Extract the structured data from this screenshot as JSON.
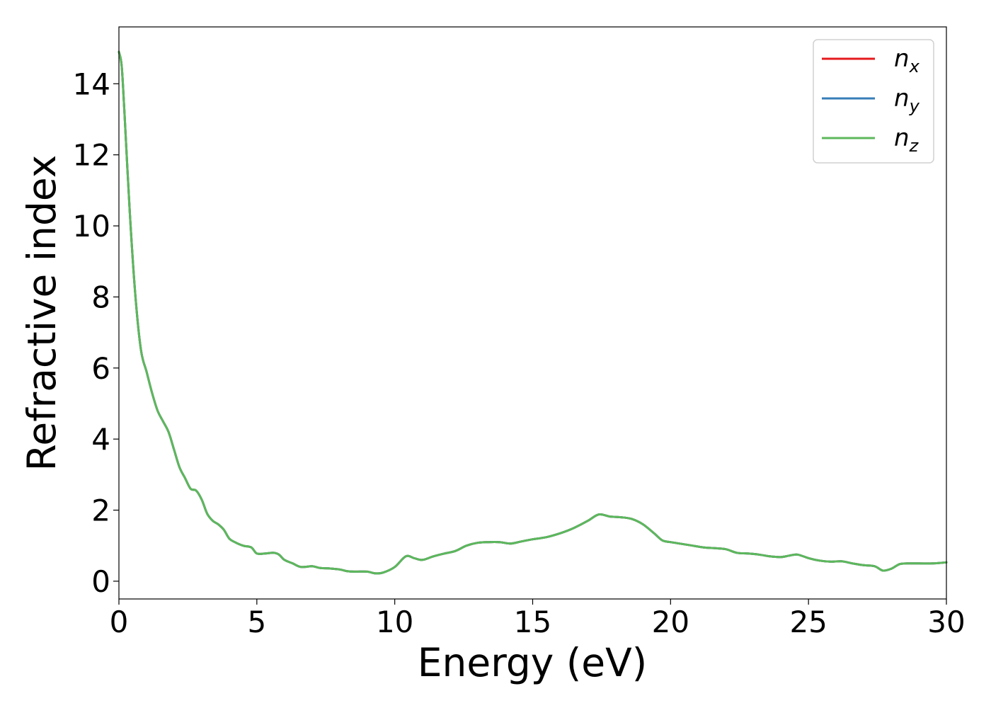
{
  "chart_data": {
    "type": "line",
    "xlabel": "Energy (eV)",
    "ylabel": "Refractive index",
    "xlim": [
      0,
      30
    ],
    "ylim": [
      -0.5,
      15.6
    ],
    "x_ticks": [
      0,
      5,
      10,
      15,
      20,
      25,
      30
    ],
    "y_ticks": [
      0,
      2,
      4,
      6,
      8,
      10,
      12,
      14
    ],
    "grid": false,
    "legend_position": "top-right",
    "series": [
      {
        "name": "n",
        "subscript": "x",
        "color": "#e41a1c"
      },
      {
        "name": "n",
        "subscript": "y",
        "color": "#377eb8"
      },
      {
        "name": "n",
        "subscript": "z",
        "color": "#5cb85c"
      }
    ],
    "x": [
      0,
      0.1,
      0.2,
      0.4,
      0.6,
      0.8,
      1.0,
      1.2,
      1.4,
      1.6,
      1.8,
      2.0,
      2.2,
      2.4,
      2.6,
      2.8,
      3.0,
      3.2,
      3.4,
      3.6,
      3.8,
      4.0,
      4.2,
      4.5,
      4.8,
      5.0,
      5.3,
      5.6,
      5.8,
      6.0,
      6.3,
      6.6,
      7.0,
      7.3,
      7.6,
      8.0,
      8.3,
      8.6,
      9.0,
      9.3,
      9.6,
      10.0,
      10.4,
      10.7,
      11.0,
      11.4,
      11.8,
      12.2,
      12.6,
      13.0,
      13.4,
      13.8,
      14.2,
      14.6,
      15.0,
      15.5,
      16.0,
      16.5,
      17.0,
      17.4,
      17.8,
      18.2,
      18.6,
      19.0,
      19.4,
      19.7,
      20.0,
      20.4,
      20.8,
      21.2,
      21.6,
      22.0,
      22.4,
      22.8,
      23.2,
      23.6,
      24.0,
      24.3,
      24.6,
      25.0,
      25.4,
      25.8,
      26.2,
      26.6,
      27.0,
      27.4,
      27.7,
      28.0,
      28.3,
      28.6,
      29.0,
      29.5,
      30.0
    ],
    "y": [
      14.9,
      14.5,
      13.2,
      10.3,
      8.0,
      6.5,
      5.9,
      5.3,
      4.8,
      4.5,
      4.2,
      3.7,
      3.2,
      2.9,
      2.6,
      2.55,
      2.3,
      1.9,
      1.7,
      1.6,
      1.45,
      1.2,
      1.1,
      1.0,
      0.95,
      0.78,
      0.78,
      0.8,
      0.75,
      0.6,
      0.5,
      0.4,
      0.42,
      0.37,
      0.36,
      0.33,
      0.28,
      0.27,
      0.27,
      0.22,
      0.25,
      0.4,
      0.7,
      0.65,
      0.6,
      0.7,
      0.78,
      0.85,
      1.0,
      1.08,
      1.1,
      1.1,
      1.06,
      1.12,
      1.18,
      1.24,
      1.35,
      1.5,
      1.7,
      1.88,
      1.82,
      1.8,
      1.75,
      1.6,
      1.35,
      1.15,
      1.1,
      1.05,
      1.0,
      0.95,
      0.93,
      0.9,
      0.8,
      0.78,
      0.75,
      0.7,
      0.68,
      0.72,
      0.75,
      0.65,
      0.58,
      0.55,
      0.56,
      0.5,
      0.45,
      0.42,
      0.3,
      0.35,
      0.48,
      0.5,
      0.5,
      0.5,
      0.53
    ]
  }
}
